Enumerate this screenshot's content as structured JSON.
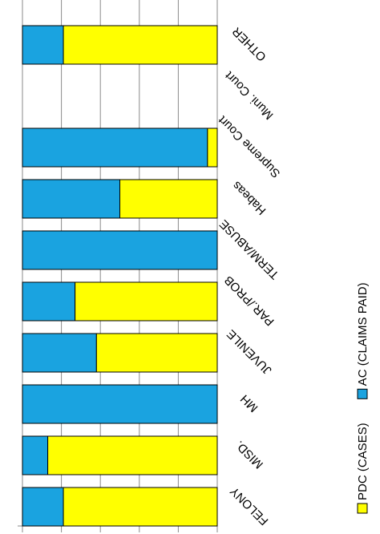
{
  "chart_data": {
    "type": "bar",
    "orientation": "horizontal-stacked-100",
    "categories": [
      "FELONY",
      "MISD.",
      "MH",
      "JUVENILE",
      "PAR./PROB",
      "TERM/ABUSE",
      "Habeas",
      "Supreme Court",
      "Muni. Court",
      "OTHER"
    ],
    "series": [
      {
        "name": "AC (CLAIMS PAID)",
        "color": "#1aa3e0",
        "values": [
          21,
          13,
          100,
          38,
          27,
          100,
          50,
          95,
          0,
          21
        ]
      },
      {
        "name": "PDC (CASES)",
        "color": "#ffff00",
        "values": [
          79,
          87,
          0,
          62,
          73,
          0,
          50,
          5,
          0,
          79
        ]
      }
    ],
    "xlim": [
      0,
      100
    ],
    "grid": true,
    "legend": "right",
    "title": "",
    "xlabel": "",
    "ylabel": ""
  }
}
